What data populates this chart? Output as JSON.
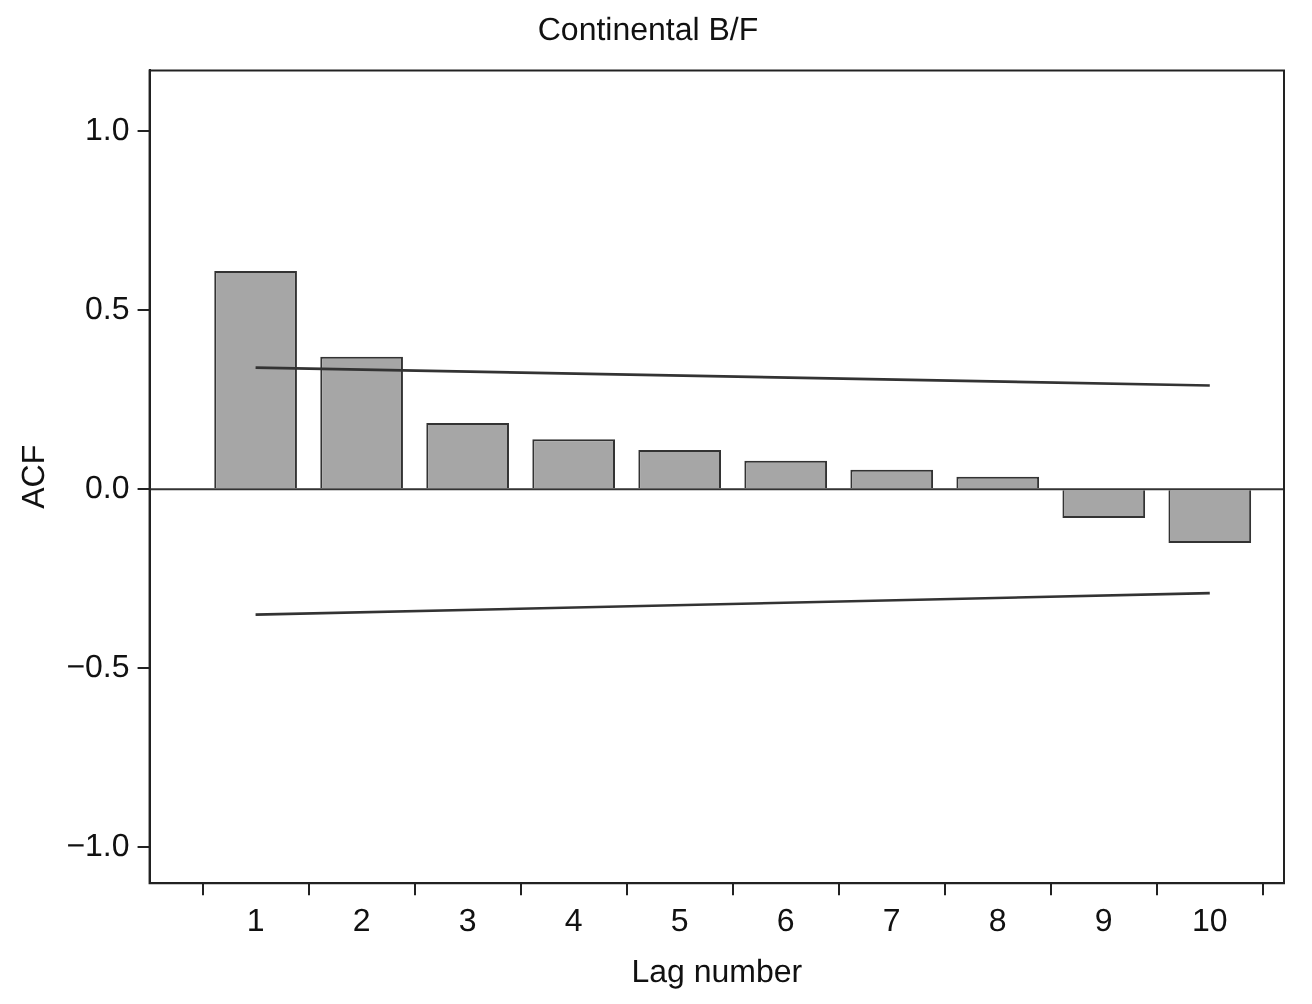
{
  "chart_data": {
    "type": "bar",
    "title": "Continental B/F",
    "xlabel": "Lag number",
    "ylabel": "ACF",
    "series": [
      {
        "color": "#a6a6a6",
        "x": [
          1,
          2,
          3,
          4,
          5,
          6,
          7,
          8,
          9,
          10
        ],
        "values": [
          0.61,
          0.37,
          0.185,
          0.14,
          0.11,
          0.08,
          0.055,
          0.035,
          -0.08,
          -0.15
        ]
      },
      {
        "type": "line",
        "color": "#333333",
        "x": [
          1,
          10
        ],
        "values": [
          0.34,
          0.29
        ]
      },
      {
        "type": "line",
        "color": "#333333",
        "x": [
          1,
          10
        ],
        "values": [
          -0.35,
          -0.29
        ]
      }
    ],
    "xlim": [
      0,
      10.7
    ],
    "xticks": [
      1,
      2,
      3,
      4,
      5,
      6,
      7,
      8,
      9,
      10
    ],
    "ylim": [
      -1.1,
      1.17
    ],
    "yticks": [
      {
        "value": -1,
        "label": "−1.0"
      },
      {
        "value": -0.5,
        "label": "−0.5"
      },
      {
        "value": 0,
        "label": "0.0"
      },
      {
        "value": 0.5,
        "label": "0.5"
      },
      {
        "value": 1,
        "label": "1.0"
      }
    ],
    "ref_lines": [
      {
        "axis": "y",
        "value": 0,
        "color": "#333333"
      }
    ]
  }
}
